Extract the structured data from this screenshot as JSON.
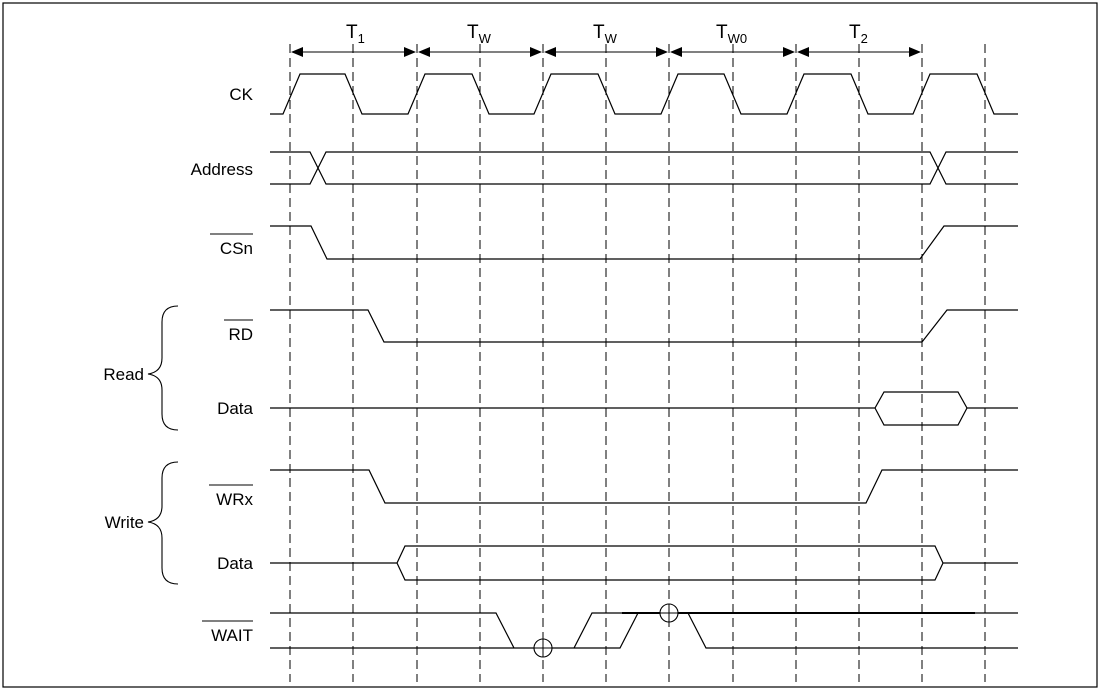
{
  "colors": {
    "line": "#000000",
    "background": "#ffffff",
    "frame": "#000000"
  },
  "periods": [
    {
      "id": "t1",
      "main": "T",
      "sub": "1"
    },
    {
      "id": "tw1",
      "main": "T",
      "sub": "W"
    },
    {
      "id": "tw2",
      "main": "T",
      "sub": "W"
    },
    {
      "id": "tw0",
      "main": "T",
      "sub": "W0"
    },
    {
      "id": "t2",
      "main": "T",
      "sub": "2"
    }
  ],
  "signals": {
    "ck": "CK",
    "address": "Address",
    "csn": "CSn",
    "rd": "RD",
    "read_data": "Data",
    "wrx": "WRx",
    "write_data": "Data",
    "wait": "WAIT"
  },
  "groups": {
    "read": "Read",
    "write": "Write"
  }
}
